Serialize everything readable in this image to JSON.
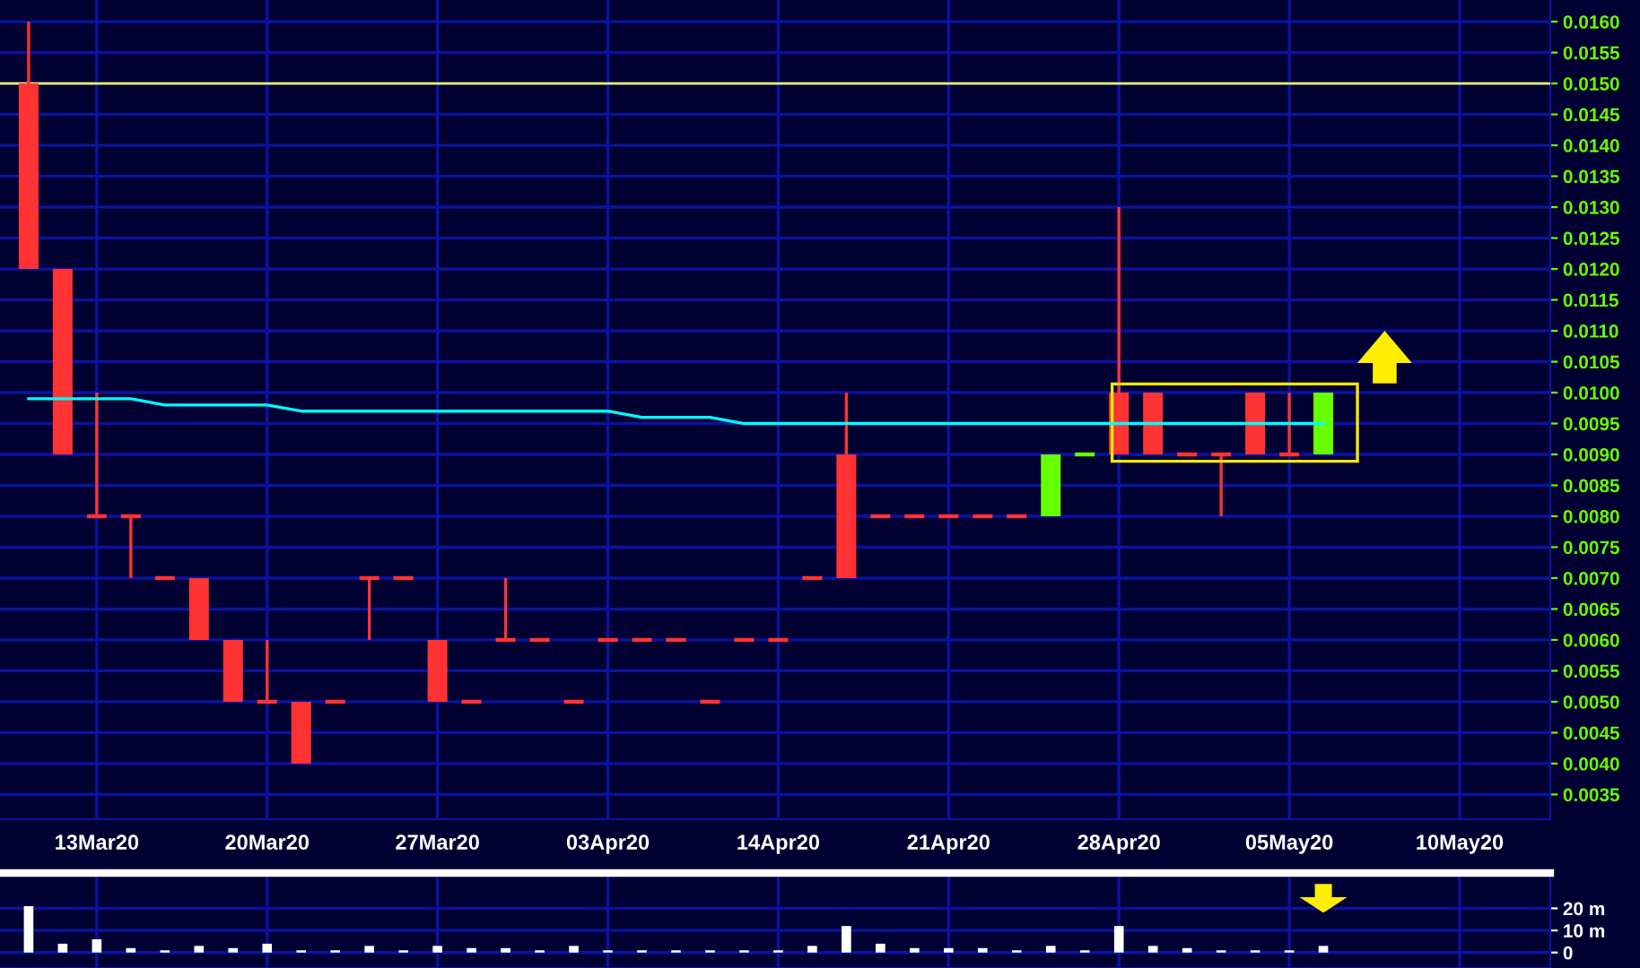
{
  "chart_data": [
    {
      "type": "candlestick",
      "categories": [
        null,
        null,
        "13Mar20",
        null,
        null,
        null,
        null,
        "20Mar20",
        null,
        null,
        null,
        null,
        "27Mar20",
        null,
        null,
        null,
        null,
        "03Apr20",
        null,
        null,
        null,
        null,
        "14Apr20",
        null,
        null,
        null,
        null,
        "21Apr20",
        null,
        null,
        null,
        null,
        "28Apr20",
        null,
        null,
        null,
        null,
        "05May20",
        null,
        null,
        null,
        null,
        "10May20",
        null,
        null
      ],
      "ohlc": [
        [
          0.015,
          0.016,
          0.012,
          0.012
        ],
        [
          0.012,
          0.012,
          0.009,
          0.009
        ],
        [
          0.008,
          0.01,
          0.008,
          0.008
        ],
        [
          0.008,
          0.008,
          0.007,
          0.008
        ],
        [
          0.007,
          0.007,
          0.007,
          0.007
        ],
        [
          0.007,
          0.007,
          0.006,
          0.006
        ],
        [
          0.006,
          0.006,
          0.005,
          0.005
        ],
        [
          0.005,
          0.006,
          0.005,
          0.005
        ],
        [
          0.005,
          0.005,
          0.004,
          0.004
        ],
        [
          0.005,
          0.005,
          0.005,
          0.005
        ],
        [
          0.007,
          0.007,
          0.006,
          0.007
        ],
        [
          0.007,
          0.007,
          0.007,
          0.007
        ],
        [
          0.006,
          0.006,
          0.005,
          0.005
        ],
        [
          0.005,
          0.005,
          0.005,
          0.005
        ],
        [
          0.006,
          0.007,
          0.006,
          0.006
        ],
        [
          0.006,
          0.006,
          0.006,
          0.006
        ],
        [
          0.005,
          0.005,
          0.005,
          0.005
        ],
        [
          0.006,
          0.006,
          0.006,
          0.006
        ],
        [
          0.006,
          0.006,
          0.006,
          0.006
        ],
        [
          0.006,
          0.006,
          0.006,
          0.006
        ],
        [
          0.005,
          0.005,
          0.005,
          0.005
        ],
        [
          0.006,
          0.006,
          0.006,
          0.006
        ],
        [
          0.006,
          0.006,
          0.006,
          0.006
        ],
        [
          0.007,
          0.007,
          0.007,
          0.007
        ],
        [
          0.009,
          0.01,
          0.007,
          0.007
        ],
        [
          0.008,
          0.008,
          0.008,
          0.008
        ],
        [
          0.008,
          0.008,
          0.008,
          0.008
        ],
        [
          0.008,
          0.008,
          0.008,
          0.008
        ],
        [
          0.008,
          0.008,
          0.008,
          0.008
        ],
        [
          0.008,
          0.008,
          0.008,
          0.008
        ],
        [
          0.008,
          0.009,
          0.008,
          0.009
        ],
        [
          0.009,
          0.009,
          0.009,
          0.009
        ],
        [
          0.01,
          0.013,
          0.009,
          0.009
        ],
        [
          0.01,
          0.01,
          0.009,
          0.009
        ],
        [
          0.009,
          0.009,
          0.009,
          0.009
        ],
        [
          0.009,
          0.009,
          0.008,
          0.009
        ],
        [
          0.01,
          0.01,
          0.009,
          0.009
        ],
        [
          0.009,
          0.01,
          0.009,
          0.009
        ],
        [
          0.009,
          0.01,
          0.009,
          0.01
        ],
        null,
        null,
        null,
        null,
        null,
        null
      ],
      "colors": [
        "#ff3333",
        "#ff3333",
        "#ff3333",
        "#ff3333",
        "#ff3333",
        "#ff3333",
        "#ff3333",
        "#ff3333",
        "#ff3333",
        "#ff3333",
        "#ff3333",
        "#ff3333",
        "#ff3333",
        "#ff3333",
        "#ff3333",
        "#ff3333",
        "#ff3333",
        "#ff3333",
        "#ff3333",
        "#ff3333",
        "#ff3333",
        "#ff3333",
        "#ff3333",
        "#ff3333",
        "#ff3333",
        "#ff3333",
        "#ff3333",
        "#ff3333",
        "#ff3333",
        "#ff3333",
        "#66ff00",
        "#66ff00",
        "#ff3333",
        "#ff3333",
        "#ff3333",
        "#ff3333",
        "#ff3333",
        "#ff3333",
        "#66ff00",
        null,
        null,
        null,
        null,
        null,
        null
      ],
      "series": [
        {
          "type": "line",
          "color": "#00ffff",
          "values": [
            0.0099,
            0.0099,
            0.0099,
            0.0099,
            0.0098,
            0.0098,
            0.0098,
            0.0098,
            0.0097,
            0.0097,
            0.0097,
            0.0097,
            0.0097,
            0.0097,
            0.0097,
            0.0097,
            0.0097,
            0.0097,
            0.0096,
            0.0096,
            0.0096,
            0.0095,
            0.0095,
            0.0095,
            0.0095,
            0.0095,
            0.0095,
            0.0095,
            0.0095,
            0.0095,
            0.0095,
            0.0095,
            0.0095,
            0.0095,
            0.0095,
            0.0095,
            0.0095,
            0.0095,
            0.0095,
            null,
            null,
            null,
            null,
            null,
            null
          ]
        }
      ],
      "ref_lines": [
        {
          "axis": "y",
          "value": 0.015,
          "color": "#f0f060"
        }
      ],
      "ylim": [
        0.0031,
        0.01635
      ],
      "yticks": [
        {
          "value": 0.0035,
          "label": "0.0035"
        },
        {
          "value": 0.004,
          "label": "0.0040"
        },
        {
          "value": 0.0045,
          "label": "0.0045"
        },
        {
          "value": 0.005,
          "label": "0.0050"
        },
        {
          "value": 0.0055,
          "label": "0.0055"
        },
        {
          "value": 0.006,
          "label": "0.0060"
        },
        {
          "value": 0.0065,
          "label": "0.0065"
        },
        {
          "value": 0.007,
          "label": "0.0070"
        },
        {
          "value": 0.0075,
          "label": "0.0075"
        },
        {
          "value": 0.008,
          "label": "0.0080"
        },
        {
          "value": 0.0085,
          "label": "0.0085"
        },
        {
          "value": 0.009,
          "label": "0.0090"
        },
        {
          "value": 0.0095,
          "label": "0.0095"
        },
        {
          "value": 0.01,
          "label": "0.0100"
        },
        {
          "value": 0.0105,
          "label": "0.0105"
        },
        {
          "value": 0.011,
          "label": "0.0110"
        },
        {
          "value": 0.0115,
          "label": "0.0115"
        },
        {
          "value": 0.012,
          "label": "0.0120"
        },
        {
          "value": 0.0125,
          "label": "0.0125"
        },
        {
          "value": 0.013,
          "label": "0.0130"
        },
        {
          "value": 0.0135,
          "label": "0.0135"
        },
        {
          "value": 0.014,
          "label": "0.0140"
        },
        {
          "value": 0.0145,
          "label": "0.0145"
        },
        {
          "value": 0.015,
          "label": "0.0150"
        },
        {
          "value": 0.0155,
          "label": "0.0155"
        },
        {
          "value": 0.016,
          "label": "0.0160"
        }
      ],
      "grid": true
    },
    {
      "type": "bar",
      "categories": [
        null,
        null,
        null,
        null,
        null,
        null,
        null,
        null,
        null,
        null,
        null,
        null,
        null,
        null,
        null,
        null,
        null,
        null,
        null,
        null,
        null,
        null,
        null,
        null,
        null,
        null,
        null,
        null,
        null,
        null,
        null,
        null,
        null,
        null,
        null,
        null,
        null,
        null,
        null,
        null,
        null,
        null,
        null,
        null,
        null
      ],
      "values": [
        21,
        4,
        6,
        2,
        1,
        3,
        2,
        4,
        1,
        1,
        3,
        1,
        3,
        2,
        2,
        1,
        3,
        1,
        1,
        1,
        1,
        1,
        1,
        3,
        12,
        4,
        2,
        2,
        2,
        1,
        3,
        1,
        12,
        3,
        2,
        1,
        1,
        1,
        3,
        null,
        null,
        null,
        null,
        null,
        null
      ],
      "color": "#ffffff",
      "ylim": [
        -7,
        36
      ],
      "yticks": [
        0,
        {
          "value": 10,
          "label": "10 m"
        },
        {
          "value": 20,
          "label": "20 m"
        }
      ],
      "tick_labels": "y",
      "grid": true
    }
  ]
}
